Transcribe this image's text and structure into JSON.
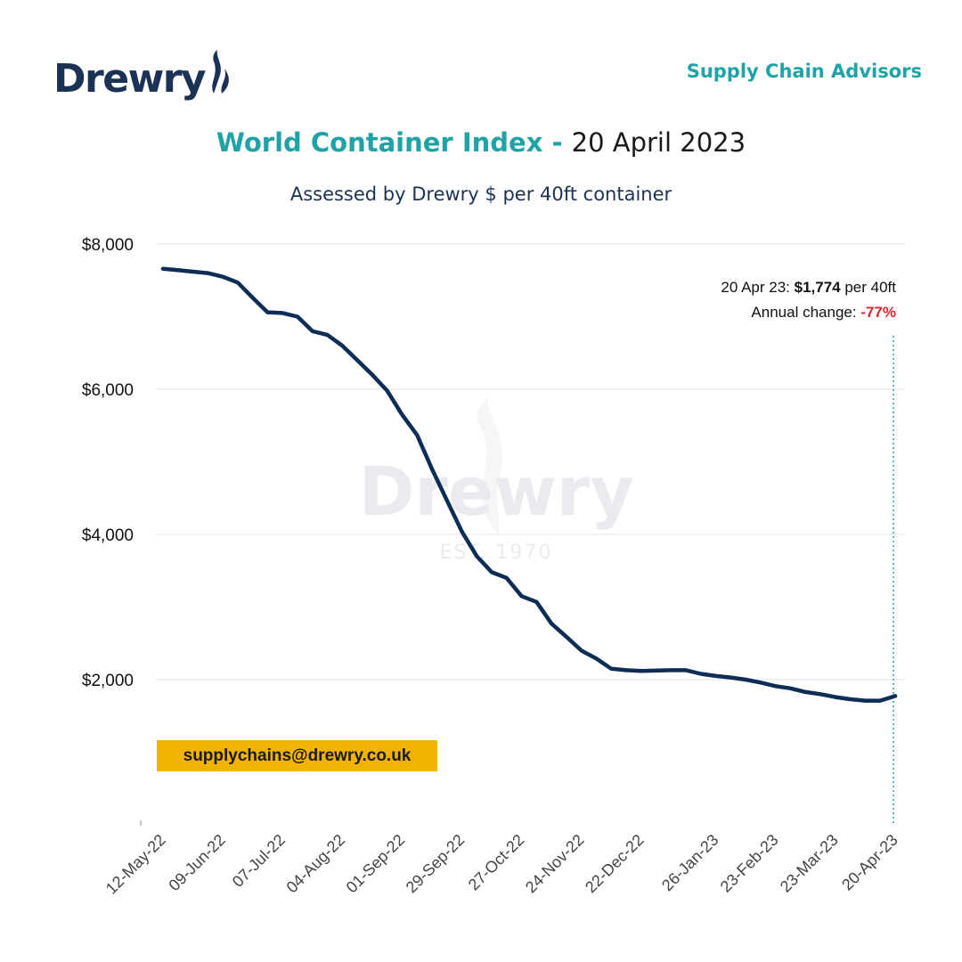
{
  "brand": {
    "logo_text": "Drewry",
    "tagline": "Supply Chain Advisors",
    "watermark_text": "Drewry",
    "watermark_sub": "EST. 1970"
  },
  "header": {
    "title_accent": "World Container Index - ",
    "title_date": "20 April 2023",
    "subtitle": "Assessed by Drewry  $ per 40ft container"
  },
  "annotation": {
    "line1_prefix": "20 Apr 23: ",
    "line1_value": "$1,774",
    "line1_suffix": " per 40ft",
    "line2_prefix": "Annual change: ",
    "line2_value": "-77%"
  },
  "contact": {
    "email": "supplychains@drewry.co.uk"
  },
  "colors": {
    "line": "#0d2d57",
    "accent": "#1fa3a6",
    "negative": "#e1252b",
    "email_bg": "#f1b300",
    "grid": "#e3e3e3"
  },
  "chart_data": {
    "type": "line",
    "title": "World Container Index - 20 April 2023",
    "subtitle": "Assessed by Drewry  $ per 40ft container",
    "xlabel": "",
    "ylabel": "",
    "ylim": [
      0,
      8000
    ],
    "y_ticks": [
      0,
      2000,
      4000,
      6000,
      8000
    ],
    "y_tick_labels": [
      "",
      "$2,000",
      "$4,000",
      "$6,000",
      "$8,000"
    ],
    "x_tick_labels": [
      "12-May-22",
      "09-Jun-22",
      "07-Jul-22",
      "04-Aug-22",
      "01-Sep-22",
      "29-Sep-22",
      "27-Oct-22",
      "24-Nov-22",
      "22-Dec-22",
      "26-Jan-23",
      "23-Feb-23",
      "23-Mar-23",
      "20-Apr-23"
    ],
    "grid": true,
    "x": [
      "12-May-22",
      "19-May-22",
      "26-May-22",
      "02-Jun-22",
      "09-Jun-22",
      "16-Jun-22",
      "23-Jun-22",
      "30-Jun-22",
      "07-Jul-22",
      "14-Jul-22",
      "21-Jul-22",
      "28-Jul-22",
      "04-Aug-22",
      "11-Aug-22",
      "18-Aug-22",
      "25-Aug-22",
      "01-Sep-22",
      "08-Sep-22",
      "15-Sep-22",
      "22-Sep-22",
      "29-Sep-22",
      "06-Oct-22",
      "13-Oct-22",
      "20-Oct-22",
      "27-Oct-22",
      "03-Nov-22",
      "10-Nov-22",
      "17-Nov-22",
      "24-Nov-22",
      "01-Dec-22",
      "08-Dec-22",
      "15-Dec-22",
      "22-Dec-22",
      "05-Jan-23",
      "12-Jan-23",
      "19-Jan-23",
      "26-Jan-23",
      "02-Feb-23",
      "09-Feb-23",
      "16-Feb-23",
      "23-Feb-23",
      "02-Mar-23",
      "09-Mar-23",
      "16-Mar-23",
      "23-Mar-23",
      "30-Mar-23",
      "06-Apr-23",
      "13-Apr-23",
      "20-Apr-23"
    ],
    "series": [
      {
        "values": [
          7660,
          7640,
          7620,
          7600,
          7550,
          7470,
          7260,
          7060,
          7050,
          7000,
          6800,
          6750,
          6600,
          6400,
          6200,
          5980,
          5650,
          5370,
          4900,
          4470,
          4040,
          3700,
          3480,
          3400,
          3150,
          3070,
          2770,
          2590,
          2400,
          2290,
          2150,
          2130,
          2120,
          2130,
          2130,
          2080,
          2050,
          2030,
          2000,
          1960,
          1910,
          1880,
          1830,
          1800,
          1760,
          1730,
          1710,
          1710,
          1774
        ]
      }
    ]
  }
}
